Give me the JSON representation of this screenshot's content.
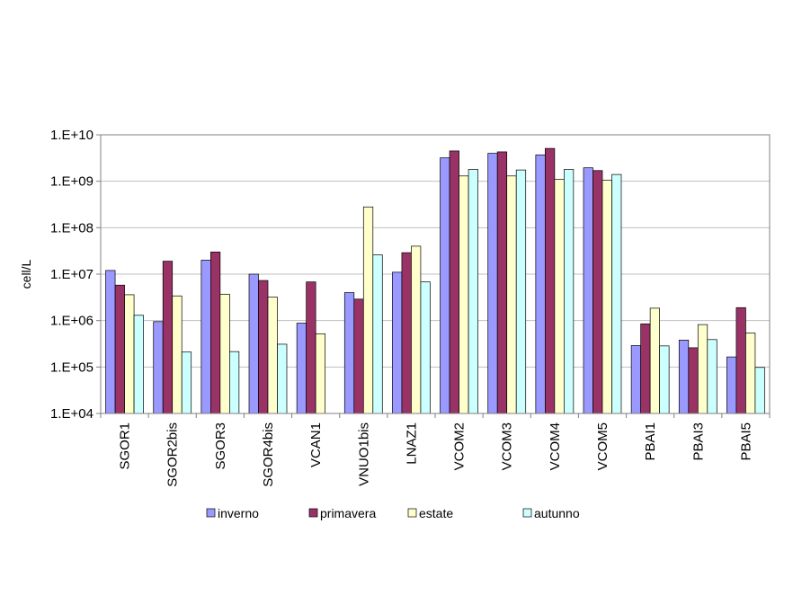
{
  "chart_data": {
    "type": "bar",
    "ylabel": "cell/L",
    "yscale": "log",
    "ylim": [
      10000,
      10000000000
    ],
    "y_ticks": [
      "1.E+04",
      "1.E+05",
      "1.E+06",
      "1.E+07",
      "1.E+08",
      "1.E+09",
      "1.E+10"
    ],
    "y_tick_values": [
      10000,
      100000,
      1000000,
      10000000,
      100000000,
      1000000000,
      10000000000
    ],
    "grid": true,
    "legend_position": "bottom",
    "categories": [
      "SGOR1",
      "SGOR2bis",
      "SGOR3",
      "SGOR4bis",
      "VCAN1",
      "VNUO1bis",
      "LNAZ1",
      "VCOM2",
      "VCOM3",
      "VCOM4",
      "VCOM5",
      "PBAI1",
      "PBAI3",
      "PBAI5"
    ],
    "series": [
      {
        "name": "inverno",
        "color": "#9999ff",
        "values": [
          12000000,
          950000,
          20000000,
          10000000,
          880000,
          4000000,
          11000000,
          3200000000,
          4000000000,
          3700000000,
          1950000000,
          290000,
          380000,
          165000
        ]
      },
      {
        "name": "primavera",
        "color": "#993366",
        "values": [
          5800000,
          19000000,
          30000000,
          7300000,
          6800000,
          2900000,
          29000000,
          4500000000,
          4300000000,
          5100000000,
          1700000000,
          850000,
          260000,
          1900000
        ]
      },
      {
        "name": "estate",
        "color": "#ffffcc",
        "values": [
          3600000,
          3400000,
          3700000,
          3200000,
          520000,
          280000000,
          40000000,
          1300000000,
          1300000000,
          1100000000,
          1050000000,
          1850000,
          820000,
          540000
        ]
      },
      {
        "name": "autunno",
        "color": "#ccffff",
        "values": [
          1300000,
          210000,
          215000,
          310000,
          10000,
          26000000,
          6800000,
          1800000000,
          1750000000,
          1800000000,
          1400000000,
          285000,
          390000,
          98000
        ]
      }
    ]
  }
}
